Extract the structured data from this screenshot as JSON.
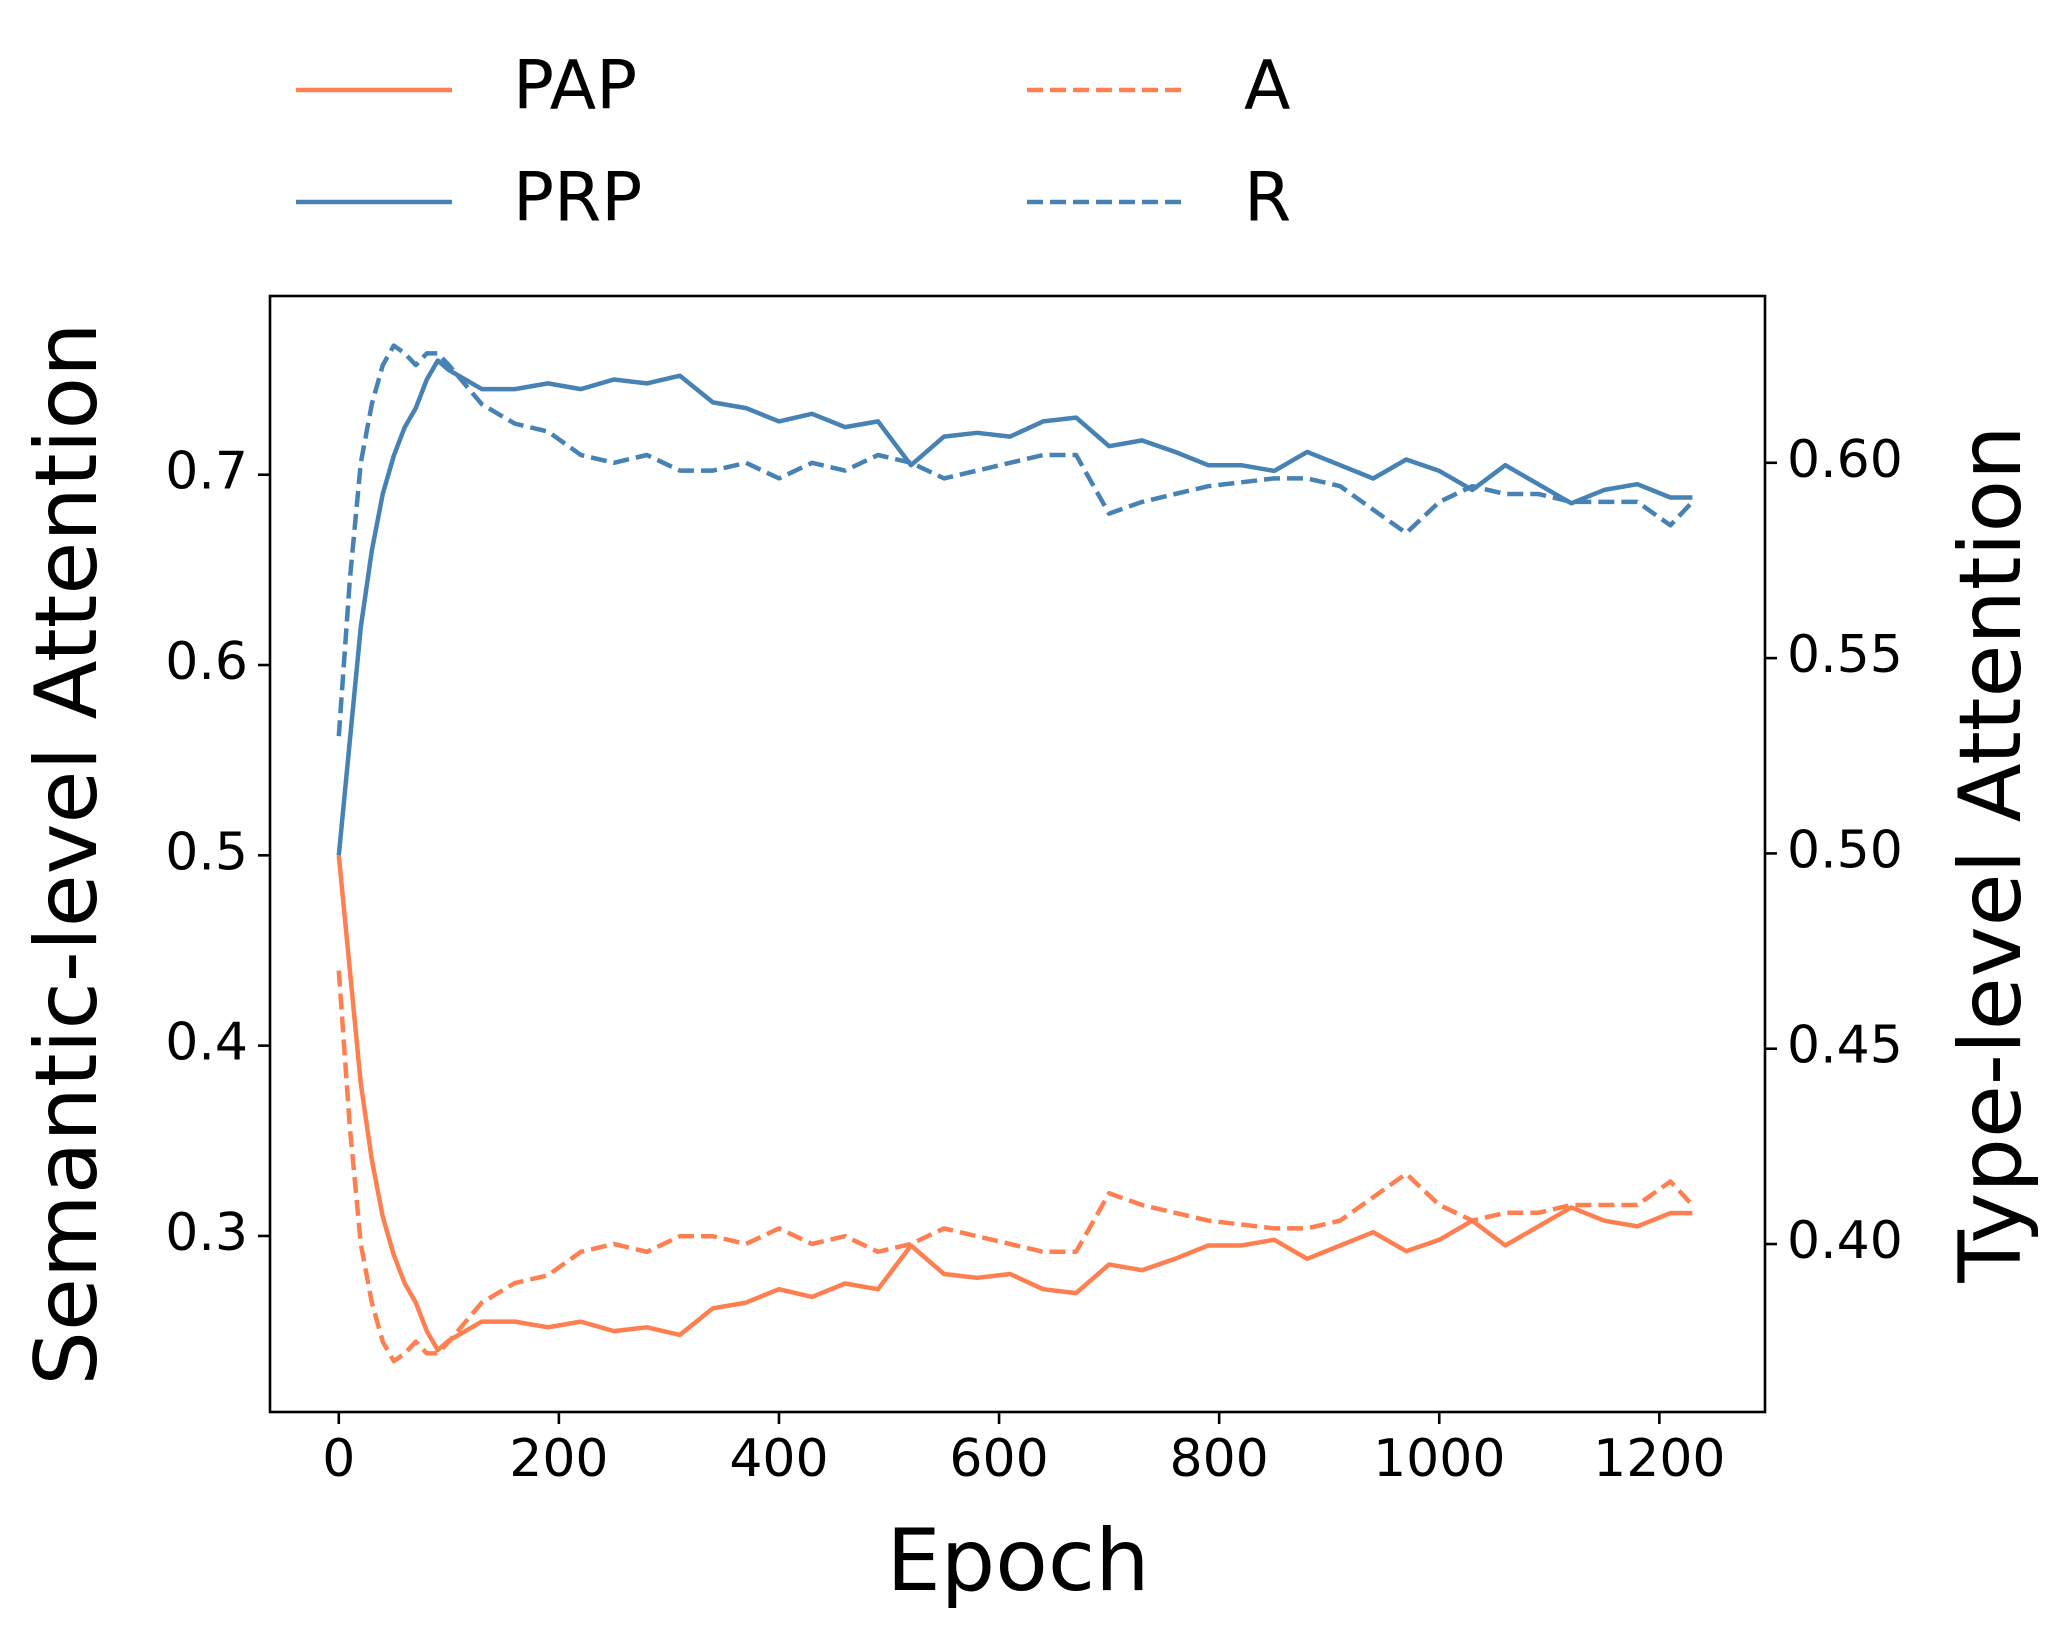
{
  "chart_data": {
    "type": "line",
    "x_label": "Epoch",
    "y_label": "Semantic-level Attention",
    "y2_label": "Type-level Attention",
    "x": [
      0,
      10,
      20,
      30,
      40,
      50,
      60,
      70,
      80,
      90,
      100,
      130,
      160,
      190,
      220,
      250,
      280,
      310,
      340,
      370,
      400,
      430,
      460,
      490,
      520,
      550,
      580,
      610,
      640,
      670,
      700,
      730,
      760,
      790,
      820,
      850,
      880,
      910,
      940,
      970,
      1000,
      1030,
      1060,
      1090,
      1120,
      1150,
      1180,
      1210,
      1230
    ],
    "series": [
      {
        "name": "PAP",
        "color": "#ff7f50",
        "dash": false,
        "axis": "y",
        "values": [
          0.5,
          0.44,
          0.38,
          0.34,
          0.31,
          0.29,
          0.275,
          0.265,
          0.25,
          0.24,
          0.245,
          0.255,
          0.255,
          0.252,
          0.255,
          0.25,
          0.252,
          0.248,
          0.262,
          0.265,
          0.272,
          0.268,
          0.275,
          0.272,
          0.295,
          0.28,
          0.278,
          0.28,
          0.272,
          0.27,
          0.285,
          0.282,
          0.288,
          0.295,
          0.295,
          0.298,
          0.288,
          0.295,
          0.302,
          0.292,
          0.298,
          0.308,
          0.295,
          0.305,
          0.315,
          0.308,
          0.305,
          0.312,
          0.312
        ]
      },
      {
        "name": "PRP",
        "color": "#4682b4",
        "dash": false,
        "axis": "y",
        "values": [
          0.5,
          0.56,
          0.62,
          0.66,
          0.69,
          0.71,
          0.725,
          0.735,
          0.75,
          0.76,
          0.755,
          0.745,
          0.745,
          0.748,
          0.745,
          0.75,
          0.748,
          0.752,
          0.738,
          0.735,
          0.728,
          0.732,
          0.725,
          0.728,
          0.705,
          0.72,
          0.722,
          0.72,
          0.728,
          0.73,
          0.715,
          0.718,
          0.712,
          0.705,
          0.705,
          0.702,
          0.712,
          0.705,
          0.698,
          0.708,
          0.702,
          0.692,
          0.705,
          0.695,
          0.685,
          0.692,
          0.695,
          0.688,
          0.688
        ]
      },
      {
        "name": "A",
        "color": "#ff7f50",
        "dash": true,
        "axis": "y2",
        "values": [
          0.47,
          0.43,
          0.4,
          0.385,
          0.375,
          0.37,
          0.372,
          0.375,
          0.372,
          0.372,
          0.375,
          0.385,
          0.39,
          0.392,
          0.398,
          0.4,
          0.398,
          0.402,
          0.402,
          0.4,
          0.404,
          0.4,
          0.402,
          0.398,
          0.4,
          0.404,
          0.402,
          0.4,
          0.398,
          0.398,
          0.413,
          0.41,
          0.408,
          0.406,
          0.405,
          0.404,
          0.404,
          0.406,
          0.412,
          0.418,
          0.41,
          0.406,
          0.408,
          0.408,
          0.41,
          0.41,
          0.41,
          0.416,
          0.41
        ]
      },
      {
        "name": "R",
        "color": "#4682b4",
        "dash": true,
        "axis": "y2",
        "values": [
          0.53,
          0.57,
          0.6,
          0.615,
          0.625,
          0.63,
          0.628,
          0.625,
          0.628,
          0.628,
          0.625,
          0.615,
          0.61,
          0.608,
          0.602,
          0.6,
          0.602,
          0.598,
          0.598,
          0.6,
          0.596,
          0.6,
          0.598,
          0.602,
          0.6,
          0.596,
          0.598,
          0.6,
          0.602,
          0.602,
          0.587,
          0.59,
          0.592,
          0.594,
          0.595,
          0.596,
          0.596,
          0.594,
          0.588,
          0.582,
          0.59,
          0.594,
          0.592,
          0.592,
          0.59,
          0.59,
          0.59,
          0.584,
          0.59
        ]
      }
    ],
    "xlim": [
      -62.5,
      1296
    ],
    "xticks": [
      0,
      200,
      400,
      600,
      800,
      1000,
      1200
    ],
    "ylim": [
      0.2075,
      0.7939
    ],
    "yticks": [
      0.3,
      0.4,
      0.5,
      0.6,
      0.7
    ],
    "y2lim": [
      0.357,
      0.6427
    ],
    "y2ticks": [
      {
        "value": 0.4,
        "label": "0.40"
      },
      {
        "value": 0.45,
        "label": "0.45"
      },
      {
        "value": 0.5,
        "label": "0.50"
      },
      {
        "value": 0.55,
        "label": "0.55"
      },
      {
        "value": 0.6,
        "label": "0.60"
      }
    ]
  }
}
